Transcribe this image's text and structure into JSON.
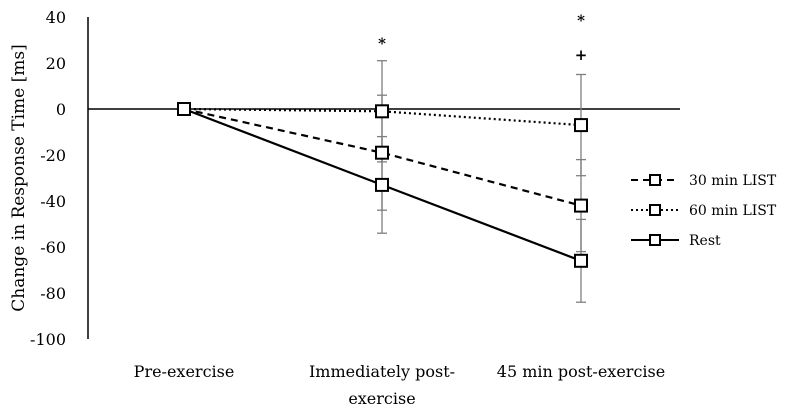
{
  "chart_data": {
    "type": "line",
    "title": "",
    "xlabel": "",
    "ylabel": "Change in Response Time [ms]",
    "ylim": [
      -100,
      40
    ],
    "yticks": [
      40,
      20,
      0,
      -20,
      -40,
      -60,
      -80,
      -100
    ],
    "ytick_labels": [
      "40",
      "20",
      "0",
      "-20",
      "-40",
      "-60",
      "-80",
      "-100"
    ],
    "categories": [
      "Pre-exercise",
      "Immediately post-exercise",
      "45 min post-exercise"
    ],
    "category_label_lines": [
      [
        "Pre-exercise"
      ],
      [
        "Immediately post-",
        "exercise"
      ],
      [
        "45 min post-exercise"
      ]
    ],
    "legend_position": "right",
    "series": [
      {
        "name": "30 min LIST",
        "dash": "dashed",
        "values": [
          0,
          -19,
          -42
        ],
        "errors": [
          0,
          25,
          20
        ]
      },
      {
        "name": "60 min LIST",
        "dash": "dotted",
        "values": [
          0,
          -1,
          -7
        ],
        "errors": [
          0,
          22,
          22
        ]
      },
      {
        "name": "Rest",
        "dash": "solid",
        "values": [
          0,
          -33,
          -66
        ],
        "errors": [
          0,
          21,
          18
        ]
      }
    ],
    "annotations": [
      {
        "category": 1,
        "y": 29,
        "text": "*"
      },
      {
        "category": 2,
        "y": 39,
        "text": "*"
      },
      {
        "category": 2,
        "y": 24,
        "text": "+"
      }
    ],
    "colors": {
      "line": "#000000",
      "error_bar": "#7f7f7f",
      "marker_fill": "#ffffff"
    }
  }
}
